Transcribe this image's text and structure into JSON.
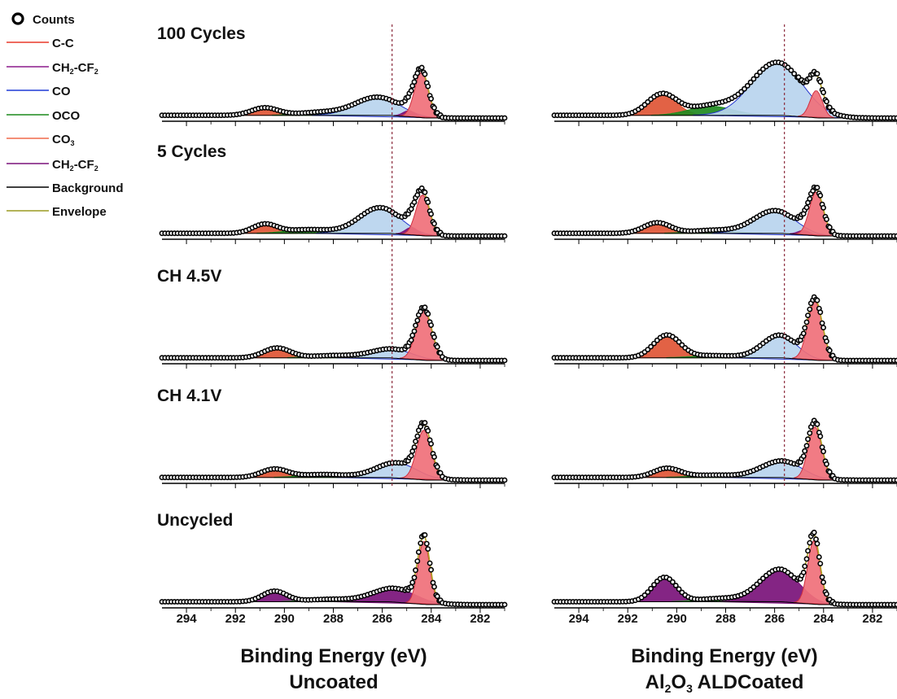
{
  "legend": {
    "items": [
      {
        "key": "counts",
        "label": "Counts",
        "kind": "marker",
        "color": "#000000"
      },
      {
        "key": "cc",
        "label": "C-C",
        "kind": "line",
        "color": "#e8382a"
      },
      {
        "key": "ch2cf2_a",
        "label_parts": [
          [
            "CH",
            "n"
          ],
          [
            "2",
            "sub"
          ],
          [
            "-CF",
            "n"
          ],
          [
            "2",
            "sub"
          ]
        ],
        "kind": "line",
        "color": "#8b1a8b"
      },
      {
        "key": "co",
        "label": "CO",
        "kind": "line",
        "color": "#1f3ad6"
      },
      {
        "key": "oco",
        "label": "OCO",
        "kind": "line",
        "color": "#1c8a1c"
      },
      {
        "key": "co3",
        "label_parts": [
          [
            "CO",
            "n"
          ],
          [
            "3",
            "sub"
          ]
        ],
        "kind": "line",
        "color": "#f06a4a"
      },
      {
        "key": "ch2cf2_b",
        "label_parts": [
          [
            "CH",
            "n"
          ],
          [
            "2",
            "sub"
          ],
          [
            "-CF",
            "n"
          ],
          [
            "2",
            "sub"
          ]
        ],
        "kind": "line",
        "color": "#7a127a"
      },
      {
        "key": "background",
        "label": "Background",
        "kind": "line",
        "color": "#000000"
      },
      {
        "key": "envelope",
        "label": "Envelope",
        "kind": "line",
        "color": "#9a9a20"
      }
    ]
  },
  "colors": {
    "cc_fill": "#f0707a",
    "co_fill": "#b8d4ee",
    "co_line": "#2233cc",
    "oco_fill": "#1f8a1f",
    "co3_fill": "#e05535",
    "ch2_fill": "#7a127a",
    "envelope": "#b0a020",
    "counts": "#000000",
    "refline": "#8b2a3a"
  },
  "chart_data": {
    "type": "line",
    "x_unit": "eV",
    "xlim": [
      295,
      281
    ],
    "xticks": [
      294,
      292,
      290,
      288,
      286,
      284,
      282
    ],
    "reference_line_eV": 285.6,
    "panels": [
      {
        "column_title": "Binding Energy (eV)",
        "column_subtitle": "Uncoated",
        "column_subtitle_parts": [
          [
            "Uncoated",
            "n"
          ]
        ],
        "rows": [
          {
            "label": "100 Cycles",
            "peaks": [
              {
                "comp": "co3",
                "center": 290.8,
                "height": 0.1,
                "width": 0.55
              },
              {
                "comp": "oco",
                "center": 288.5,
                "height": 0.04,
                "width": 0.9
              },
              {
                "comp": "co",
                "center": 286.2,
                "height": 0.24,
                "width": 0.9
              },
              {
                "comp": "ch2",
                "center": 284.9,
                "height": 0.08,
                "width": 0.25
              },
              {
                "comp": "cc",
                "center": 284.4,
                "height": 0.6,
                "width": 0.28
              }
            ]
          },
          {
            "label": "5 Cycles",
            "peaks": [
              {
                "comp": "co3",
                "center": 290.8,
                "height": 0.12,
                "width": 0.5
              },
              {
                "comp": "oco",
                "center": 289.0,
                "height": 0.05,
                "width": 0.9
              },
              {
                "comp": "co",
                "center": 286.1,
                "height": 0.34,
                "width": 0.85
              },
              {
                "comp": "ch2",
                "center": 284.8,
                "height": 0.1,
                "width": 0.25
              },
              {
                "comp": "cc",
                "center": 284.35,
                "height": 0.54,
                "width": 0.28
              }
            ]
          },
          {
            "label": "CH 4.5V",
            "peaks": [
              {
                "comp": "co3",
                "center": 290.3,
                "height": 0.13,
                "width": 0.55
              },
              {
                "comp": "oco",
                "center": 288.0,
                "height": 0.03,
                "width": 0.9
              },
              {
                "comp": "co",
                "center": 285.6,
                "height": 0.12,
                "width": 0.85
              },
              {
                "comp": "cc",
                "center": 284.3,
                "height": 0.65,
                "width": 0.32
              }
            ]
          },
          {
            "label": "CH 4.1V",
            "peaks": [
              {
                "comp": "co3",
                "center": 290.4,
                "height": 0.11,
                "width": 0.55
              },
              {
                "comp": "oco",
                "center": 288.4,
                "height": 0.04,
                "width": 0.9
              },
              {
                "comp": "co",
                "center": 285.4,
                "height": 0.2,
                "width": 0.85
              },
              {
                "comp": "cc",
                "center": 284.3,
                "height": 0.66,
                "width": 0.3
              }
            ]
          },
          {
            "label": "Uncycled",
            "peaks": [
              {
                "comp": "ch2",
                "center": 290.4,
                "height": 0.13,
                "width": 0.5
              },
              {
                "comp": "oco",
                "center": 288.2,
                "height": 0.03,
                "width": 0.9
              },
              {
                "comp": "ch2",
                "center": 285.5,
                "height": 0.17,
                "width": 0.9
              },
              {
                "comp": "cc",
                "center": 284.3,
                "height": 0.78,
                "width": 0.24
              }
            ]
          }
        ]
      },
      {
        "column_title": "Binding Energy (eV)",
        "column_subtitle_parts": [
          [
            "Al",
            "n"
          ],
          [
            "2",
            "sub"
          ],
          [
            "O",
            "n"
          ],
          [
            "3",
            "sub"
          ],
          [
            " ALDCoated",
            "n"
          ]
        ],
        "rows": [
          {
            "label": "",
            "peaks": [
              {
                "comp": "co3",
                "center": 290.6,
                "height": 0.28,
                "width": 0.6
              },
              {
                "comp": "oco",
                "center": 288.6,
                "height": 0.12,
                "width": 0.9
              },
              {
                "comp": "co",
                "center": 285.9,
                "height": 0.7,
                "width": 1.05
              },
              {
                "comp": "cc",
                "center": 284.3,
                "height": 0.36,
                "width": 0.25
              }
            ]
          },
          {
            "label": "",
            "peaks": [
              {
                "comp": "co3",
                "center": 290.8,
                "height": 0.14,
                "width": 0.55
              },
              {
                "comp": "oco",
                "center": 288.5,
                "height": 0.04,
                "width": 0.9
              },
              {
                "comp": "co",
                "center": 286.0,
                "height": 0.3,
                "width": 0.85
              },
              {
                "comp": "ch2",
                "center": 284.8,
                "height": 0.06,
                "width": 0.25
              },
              {
                "comp": "cc",
                "center": 284.3,
                "height": 0.58,
                "width": 0.28
              }
            ]
          },
          {
            "label": "",
            "peaks": [
              {
                "comp": "co3",
                "center": 290.4,
                "height": 0.3,
                "width": 0.55
              },
              {
                "comp": "oco",
                "center": 288.5,
                "height": 0.03,
                "width": 0.9
              },
              {
                "comp": "co",
                "center": 285.8,
                "height": 0.3,
                "width": 0.7
              },
              {
                "comp": "cc",
                "center": 284.35,
                "height": 0.78,
                "width": 0.3
              }
            ]
          },
          {
            "label": "",
            "peaks": [
              {
                "comp": "co3",
                "center": 290.4,
                "height": 0.12,
                "width": 0.55
              },
              {
                "comp": "oco",
                "center": 288.5,
                "height": 0.03,
                "width": 0.9
              },
              {
                "comp": "co",
                "center": 285.7,
                "height": 0.22,
                "width": 0.85
              },
              {
                "comp": "cc",
                "center": 284.35,
                "height": 0.7,
                "width": 0.28
              }
            ]
          },
          {
            "label": "",
            "peaks": [
              {
                "comp": "ch2",
                "center": 290.5,
                "height": 0.3,
                "width": 0.5
              },
              {
                "comp": "oco",
                "center": 288.2,
                "height": 0.04,
                "width": 0.9
              },
              {
                "comp": "ch2",
                "center": 285.8,
                "height": 0.4,
                "width": 0.8
              },
              {
                "comp": "cc",
                "center": 284.4,
                "height": 0.78,
                "width": 0.25
              }
            ]
          }
        ]
      }
    ]
  }
}
